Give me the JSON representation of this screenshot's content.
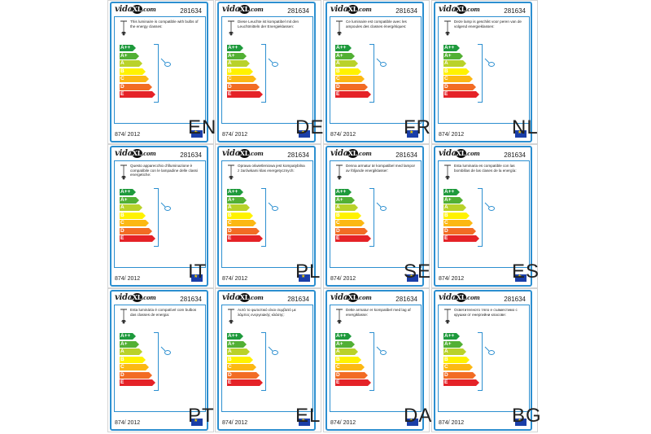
{
  "product_number": "281634",
  "regulation": "874/ 2012",
  "logo": {
    "left": "vida",
    "mid": "XL",
    "right": ".com"
  },
  "energy_classes": [
    "A++",
    "A+",
    "A",
    "B",
    "C",
    "D",
    "E"
  ],
  "class_colors": [
    "#1e9a3c",
    "#52b034",
    "#b9d22a",
    "#fff200",
    "#fcb813",
    "#f26c24",
    "#e52227"
  ],
  "panels": [
    {
      "lang": "EN",
      "text": "This luminaire is compatible with bulbs of the energy classes:"
    },
    {
      "lang": "DE",
      "text": "Diese Leuchte ist kompatibel mit den Leuchtmitteln der Energieklassen:"
    },
    {
      "lang": "FR",
      "text": "Ce luminaire est compatible avec les ampoules des classes énergétiques:"
    },
    {
      "lang": "NL",
      "text": "Deze lamp is geschikt voor peren van de volgend energieklassen:"
    },
    {
      "lang": "IT",
      "text": "Questo apparecchio d'illuminazione è compatibile con le lampadine delle classi energetiche:"
    },
    {
      "lang": "PL",
      "text": "Oprawa oświetleniowa jest kompatybilna z żarówkami klas energetycznych:"
    },
    {
      "lang": "SE",
      "text": "Denna armatur är kompatibel med lampor av följande energiklasser:"
    },
    {
      "lang": "ES",
      "text": "Esta luminaria es compatible con las bombillas de las clases de la energía:"
    },
    {
      "lang": "PT",
      "text": "Esta luminária é compatível com bulbos das classes de energia:"
    },
    {
      "lang": "EL",
      "text": "Αυτό το φωτιστικό είναι συμβατό με λάμπες ενεργειακής κλάσης:"
    },
    {
      "lang": "DA",
      "text": "Dette armatur er kompatibel med lag af energiklasse:"
    },
    {
      "lang": "BG",
      "text": "Осветителното тяло е съвместимо с крушки от енергийни класове:"
    }
  ]
}
